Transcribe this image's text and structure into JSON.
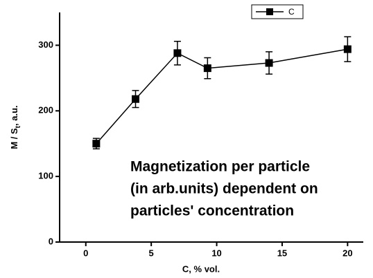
{
  "chart_data": {
    "type": "line",
    "x_label": "C, % vol.",
    "y_label": {
      "main": "M / S",
      "sub": "t",
      "rest": ", a.u."
    },
    "annotation": [
      "Magnetization per particle",
      "(in arb.units) dependent on",
      "particles' concentration"
    ],
    "x": [
      0.8,
      3.8,
      7,
      9.3,
      14,
      20
    ],
    "series": [
      {
        "name": "C",
        "color": "#000000",
        "values": [
          150,
          218,
          288,
          265,
          273,
          294
        ],
        "errors": [
          8,
          13,
          18,
          16,
          17,
          19
        ]
      }
    ],
    "xlim": [
      -2,
      21.2
    ],
    "xticks": [
      0,
      5,
      10,
      15,
      20
    ],
    "ylim": [
      0,
      350
    ],
    "yticks": [
      0,
      100,
      200,
      300
    ],
    "legend": "top-right",
    "grid": false
  }
}
